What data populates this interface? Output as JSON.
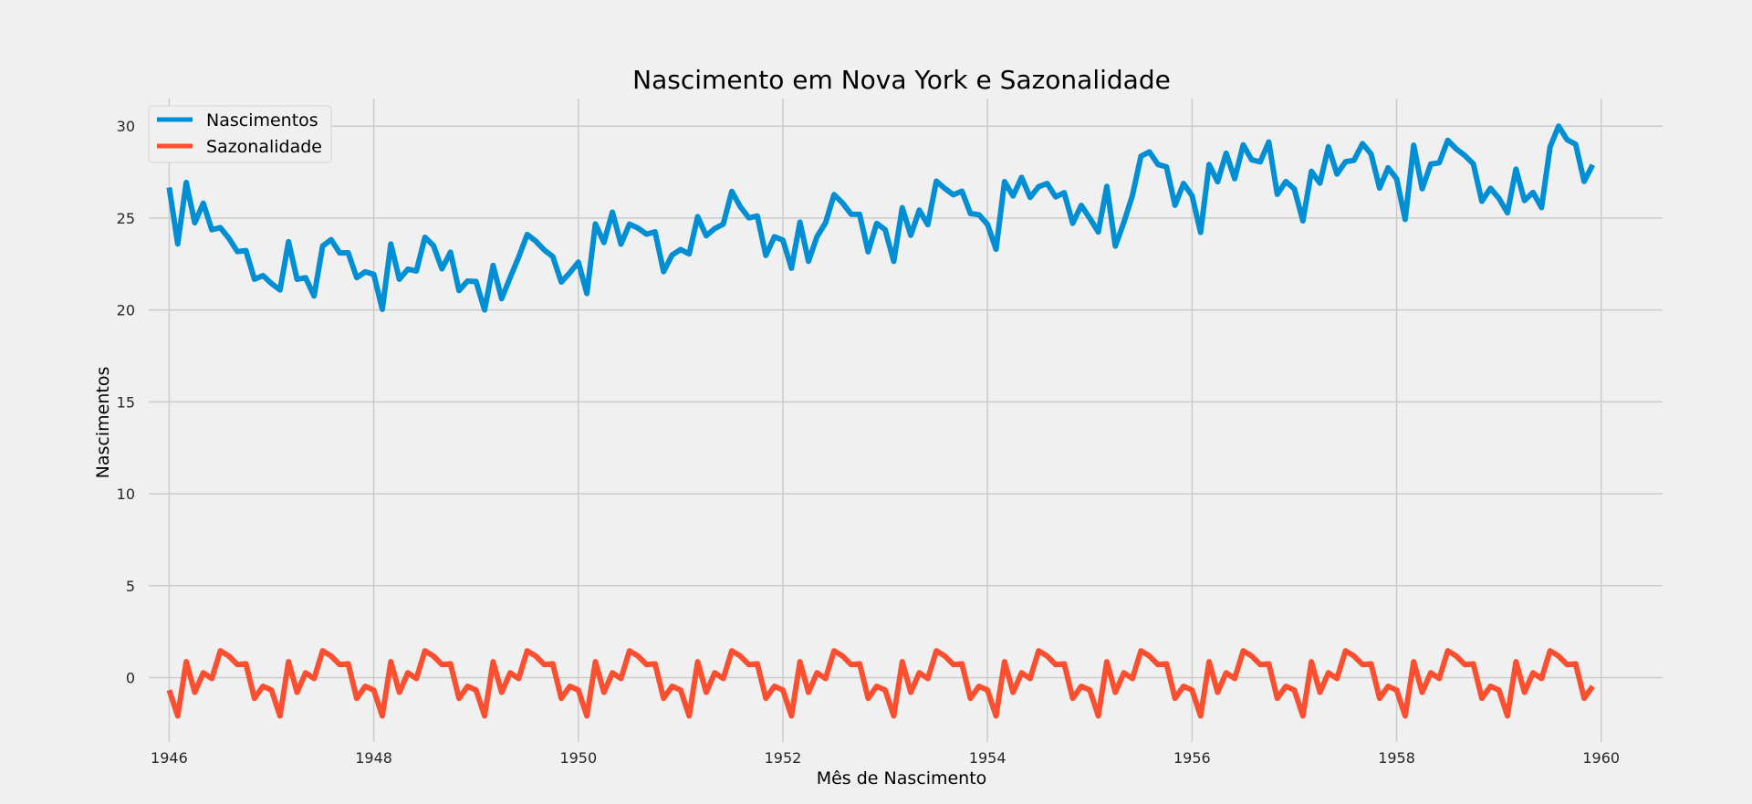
{
  "chart_data": {
    "type": "line",
    "title": "Nascimento em Nova York e Sazonalidade",
    "xlabel": "Mês de Nascimento",
    "ylabel": "Nascimentos",
    "xlim": [
      1945.8,
      1960.6
    ],
    "ylim": [
      -3.5,
      31.5
    ],
    "xticks": [
      1946,
      1948,
      1950,
      1952,
      1954,
      1956,
      1958,
      1960
    ],
    "yticks": [
      0,
      5,
      10,
      15,
      20,
      25,
      30
    ],
    "grid": true,
    "legend_position": "top-left",
    "x_start": 1946,
    "x_step": 0.08333333,
    "series": [
      {
        "name": "Nascimentos",
        "color": "#008fd5",
        "values": [
          26.663,
          23.598,
          26.931,
          24.74,
          25.806,
          24.364,
          24.477,
          23.901,
          23.175,
          23.227,
          21.672,
          21.87,
          21.439,
          21.089,
          23.709,
          21.669,
          21.752,
          20.761,
          23.479,
          23.824,
          23.105,
          23.11,
          21.759,
          22.073,
          21.937,
          20.035,
          23.59,
          21.672,
          22.222,
          22.123,
          23.95,
          23.504,
          22.238,
          23.142,
          21.059,
          21.573,
          21.548,
          20.0,
          22.424,
          20.615,
          21.761,
          22.874,
          24.104,
          23.748,
          23.262,
          22.907,
          21.519,
          22.025,
          22.604,
          20.894,
          24.677,
          23.673,
          25.32,
          23.583,
          24.671,
          24.454,
          24.122,
          24.252,
          22.084,
          22.991,
          23.287,
          23.049,
          25.076,
          24.037,
          24.43,
          24.667,
          26.451,
          25.618,
          25.014,
          25.11,
          22.964,
          23.981,
          23.798,
          22.27,
          24.775,
          22.646,
          23.988,
          24.737,
          26.276,
          25.816,
          25.21,
          25.199,
          23.162,
          24.707,
          24.364,
          22.644,
          25.565,
          24.062,
          25.431,
          24.635,
          27.009,
          26.606,
          26.268,
          26.462,
          25.246,
          25.18,
          24.657,
          23.304,
          26.982,
          26.199,
          27.21,
          26.122,
          26.706,
          26.878,
          26.152,
          26.379,
          24.712,
          25.688,
          24.99,
          24.239,
          26.721,
          23.475,
          24.767,
          26.219,
          28.361,
          28.599,
          27.914,
          27.784,
          25.693,
          26.881,
          26.217,
          24.218,
          27.914,
          26.975,
          28.527,
          27.139,
          28.982,
          28.169,
          28.056,
          29.136,
          26.291,
          26.987,
          26.589,
          24.848,
          27.543,
          26.896,
          28.878,
          27.39,
          28.065,
          28.141,
          29.048,
          28.484,
          26.634,
          27.735,
          27.132,
          24.924,
          28.963,
          26.589,
          27.931,
          28.009,
          29.229,
          28.759,
          28.405,
          27.945,
          25.912,
          26.619,
          26.076,
          25.286,
          27.66,
          25.951,
          26.398,
          25.565,
          28.865,
          30.0,
          29.261,
          29.012,
          26.992,
          27.897
        ]
      },
      {
        "name": "Sazonalidade",
        "color": "#fc4f30",
        "values": [
          -0.677,
          -2.083,
          0.863,
          -0.802,
          0.262,
          -0.052,
          1.457,
          1.174,
          0.708,
          0.751,
          -1.129,
          -0.473,
          -0.677,
          -2.083,
          0.863,
          -0.802,
          0.262,
          -0.052,
          1.457,
          1.174,
          0.708,
          0.751,
          -1.129,
          -0.473,
          -0.677,
          -2.083,
          0.863,
          -0.802,
          0.262,
          -0.052,
          1.457,
          1.174,
          0.708,
          0.751,
          -1.129,
          -0.473,
          -0.677,
          -2.083,
          0.863,
          -0.802,
          0.262,
          -0.052,
          1.457,
          1.174,
          0.708,
          0.751,
          -1.129,
          -0.473,
          -0.677,
          -2.083,
          0.863,
          -0.802,
          0.262,
          -0.052,
          1.457,
          1.174,
          0.708,
          0.751,
          -1.129,
          -0.473,
          -0.677,
          -2.083,
          0.863,
          -0.802,
          0.262,
          -0.052,
          1.457,
          1.174,
          0.708,
          0.751,
          -1.129,
          -0.473,
          -0.677,
          -2.083,
          0.863,
          -0.802,
          0.262,
          -0.052,
          1.457,
          1.174,
          0.708,
          0.751,
          -1.129,
          -0.473,
          -0.677,
          -2.083,
          0.863,
          -0.802,
          0.262,
          -0.052,
          1.457,
          1.174,
          0.708,
          0.751,
          -1.129,
          -0.473,
          -0.677,
          -2.083,
          0.863,
          -0.802,
          0.262,
          -0.052,
          1.457,
          1.174,
          0.708,
          0.751,
          -1.129,
          -0.473,
          -0.677,
          -2.083,
          0.863,
          -0.802,
          0.262,
          -0.052,
          1.457,
          1.174,
          0.708,
          0.751,
          -1.129,
          -0.473,
          -0.677,
          -2.083,
          0.863,
          -0.802,
          0.262,
          -0.052,
          1.457,
          1.174,
          0.708,
          0.751,
          -1.129,
          -0.473,
          -0.677,
          -2.083,
          0.863,
          -0.802,
          0.262,
          -0.052,
          1.457,
          1.174,
          0.708,
          0.751,
          -1.129,
          -0.473,
          -0.677,
          -2.083,
          0.863,
          -0.802,
          0.262,
          -0.052,
          1.457,
          1.174,
          0.708,
          0.751,
          -1.129,
          -0.473,
          -0.677,
          -2.083,
          0.863,
          -0.802,
          0.262,
          -0.052,
          1.457,
          1.174,
          0.708,
          0.751,
          -1.129,
          -0.473
        ]
      }
    ]
  }
}
